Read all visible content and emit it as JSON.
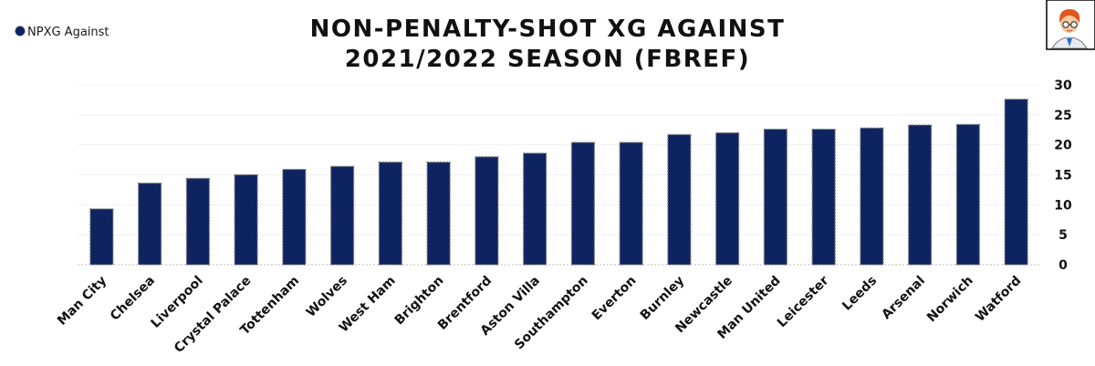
{
  "title_lines": [
    "NON-PENALTY-SHOT XG AGAINST",
    "2021/2022 SEASON (FBREF)"
  ],
  "legend": {
    "label": "NPXG Against",
    "color": "#0e2461"
  },
  "avatar_icon": "cartoon-avatar-icon",
  "colors": {
    "bar": "#0e2461",
    "grid": "#f0f0f0"
  },
  "chart_data": {
    "type": "bar",
    "title": "NON-PENALTY-SHOT XG AGAINST 2021/2022 SEASON (FBREF)",
    "categories": [
      "Man City",
      "Chelsea",
      "Liverpool",
      "Crystal Palace",
      "Tottenham",
      "Wolves",
      "West Ham",
      "Brighton",
      "Brentford",
      "Aston Villa",
      "Southampton",
      "Everton",
      "Burnley",
      "Newcastle",
      "Man United",
      "Leicester",
      "Leeds",
      "Arsenal",
      "Norwich",
      "Watford"
    ],
    "series": [
      {
        "name": "NPXG Against",
        "values": [
          9.3,
          13.6,
          14.4,
          15.0,
          15.9,
          16.4,
          17.1,
          17.1,
          18.0,
          18.6,
          20.4,
          20.4,
          21.7,
          22.0,
          22.6,
          22.6,
          22.8,
          23.3,
          23.4,
          27.6
        ]
      }
    ],
    "xlabel": "",
    "ylabel": "",
    "ylim": [
      0,
      30
    ],
    "yticks": [
      0,
      5,
      10,
      15,
      20,
      25,
      30
    ],
    "y_axis_side": "right",
    "grid": true,
    "legend_position": "top-left"
  }
}
